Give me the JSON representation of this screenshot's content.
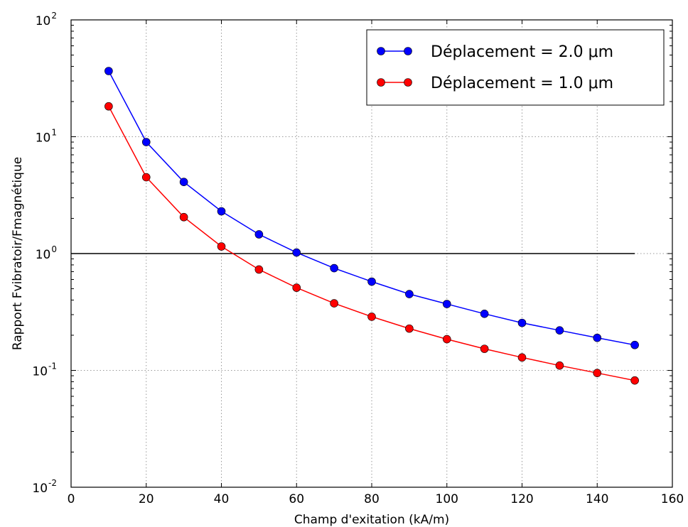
{
  "chart_data": {
    "type": "line",
    "xlabel": "Champ d'exitation (kA/m)",
    "ylabel": "Rapport Fvibratoir/Fmagnétique",
    "x_range": [
      0,
      160
    ],
    "y_range": [
      0.01,
      100
    ],
    "y_scale": "log",
    "grid": true,
    "legend_position": "top-right",
    "x_ticks": [
      0,
      20,
      40,
      60,
      80,
      100,
      120,
      140,
      160
    ],
    "y_ticks": [
      {
        "value": 0.01,
        "base": "10",
        "exp": "-2"
      },
      {
        "value": 0.1,
        "base": "10",
        "exp": "-1"
      },
      {
        "value": 1,
        "base": "10",
        "exp": "0"
      },
      {
        "value": 10,
        "base": "10",
        "exp": "1"
      },
      {
        "value": 100,
        "base": "10",
        "exp": "2"
      }
    ],
    "reference_line": {
      "y": 1,
      "x": [
        0,
        150
      ],
      "color": "#000000"
    },
    "x": [
      10,
      20,
      30,
      40,
      50,
      60,
      70,
      80,
      90,
      100,
      110,
      120,
      130,
      140,
      150
    ],
    "series": [
      {
        "name": "Déplacement = 2.0 μm",
        "color": "#0000ff",
        "values": [
          36.5,
          9.0,
          4.1,
          2.3,
          1.46,
          1.02,
          0.75,
          0.575,
          0.45,
          0.37,
          0.305,
          0.255,
          0.22,
          0.19,
          0.165
        ]
      },
      {
        "name": "Déplacement = 1.0 μm",
        "color": "#ff0000",
        "values": [
          18.2,
          4.5,
          2.05,
          1.15,
          0.73,
          0.51,
          0.375,
          0.288,
          0.228,
          0.185,
          0.153,
          0.129,
          0.11,
          0.095,
          0.082
        ]
      }
    ]
  }
}
